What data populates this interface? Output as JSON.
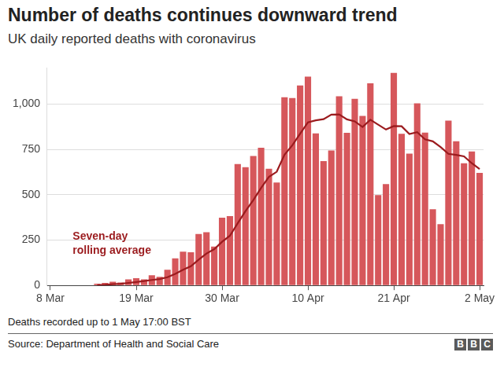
{
  "chart_data": {
    "type": "bar",
    "title": "Number of deaths continues downward trend",
    "subtitle": "UK daily reported deaths with coronavirus",
    "note": "Deaths recorded up to 1 May 17:00 BST",
    "source": "Source: Department of Health and Social Care",
    "logo": "BBC",
    "categories": [
      "8 Mar",
      null,
      null,
      null,
      null,
      null,
      null,
      null,
      null,
      null,
      null,
      "19 Mar",
      null,
      null,
      null,
      null,
      null,
      null,
      null,
      null,
      null,
      null,
      "30 Mar",
      null,
      null,
      null,
      null,
      null,
      null,
      null,
      null,
      null,
      null,
      "10 Apr",
      null,
      null,
      null,
      null,
      null,
      null,
      null,
      null,
      null,
      null,
      "21 Apr",
      null,
      null,
      null,
      null,
      null,
      null,
      null,
      null,
      null,
      null,
      "2 May"
    ],
    "series": [
      {
        "type": "bar",
        "color": "#d6575b",
        "values": [
          0,
          0,
          0,
          0,
          0,
          2,
          10,
          14,
          20,
          16,
          33,
          40,
          33,
          56,
          48,
          87,
          149,
          186,
          183,
          284,
          294,
          214,
          374,
          382,
          670,
          652,
          714,
          760,
          644,
          568,
          1038,
          1034,
          1103,
          1152,
          839,
          686,
          744,
          1044,
          842,
          1029,
          935,
          1115,
          498,
          559,
          1172,
          837,
          727,
          1005,
          843,
          420,
          338,
          909,
          795,
          674,
          739,
          621
        ]
      },
      {
        "type": "line",
        "name": "Seven-day rolling average",
        "color": "#9b1b1e",
        "values": [
          null,
          null,
          null,
          null,
          null,
          null,
          2,
          4,
          7,
          9,
          14,
          19,
          24,
          30,
          35,
          45,
          64,
          86,
          106,
          142,
          176,
          200,
          241,
          274,
          343,
          410,
          471,
          538,
          599,
          627,
          721,
          773,
          837,
          900,
          911,
          917,
          942,
          943,
          916,
          905,
          874,
          914,
          887,
          860,
          879,
          878,
          835,
          845,
          806,
          795,
          763,
          726,
          720,
          712,
          674,
          642
        ]
      }
    ],
    "ylim": [
      0,
      1200
    ],
    "yticks": [
      0,
      250,
      500,
      750,
      {
        "value": 1000,
        "label": "1,000"
      }
    ],
    "grid": true
  }
}
